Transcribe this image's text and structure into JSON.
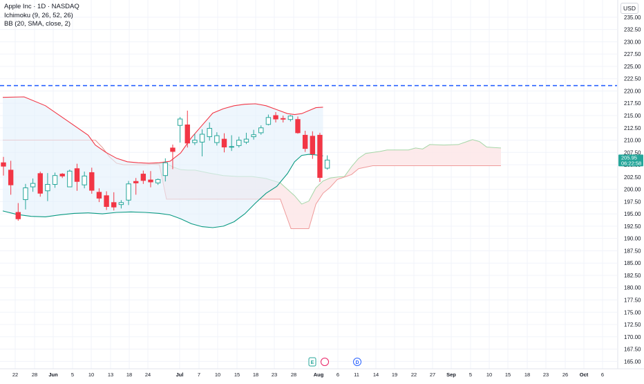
{
  "legend": {
    "title": "Apple Inc · 1D · NASDAQ",
    "ichimoku": "Ichimoku (9, 26, 52, 26)",
    "bb": "BB (20, SMA, close, 2)"
  },
  "currency": "USD",
  "price_label": {
    "value": "205.95",
    "countdown": "06:22:58"
  },
  "event_markers": [
    {
      "label": "E",
      "color": "#26a69a"
    },
    {
      "label": "",
      "color": "#e91e63"
    },
    {
      "label": "D",
      "color": "#2962ff"
    }
  ],
  "colors": {
    "up": "#26a69a",
    "down": "#f23645",
    "bb_upper": "#f23645",
    "bb_lower": "#089981",
    "bb_fill": "#e3f0fb",
    "cloud_bull": "#e8f5e9",
    "cloud_bear": "#fde6e7",
    "hline": "#2962ff"
  },
  "chart_data": {
    "type": "candlestick",
    "symbol": "Apple Inc",
    "interval": "1D",
    "exchange": "NASDAQ",
    "ylim": [
      163.5,
      238.5
    ],
    "y_ticks": [
      165.0,
      167.5,
      170.0,
      172.5,
      175.0,
      177.5,
      180.0,
      182.5,
      185.0,
      187.5,
      190.0,
      192.5,
      195.0,
      197.5,
      200.0,
      202.5,
      205.0,
      207.5,
      210.0,
      212.5,
      215.0,
      217.5,
      220.0,
      222.5,
      225.0,
      227.5,
      230.0,
      232.5,
      235.0
    ],
    "x_ticks": [
      "22",
      "28",
      "Jun",
      "5",
      "10",
      "13",
      "18",
      "24",
      "Jul",
      "7",
      "10",
      "15",
      "18",
      "23",
      "28",
      "Aug",
      "6",
      "11",
      "14",
      "19",
      "22",
      "27",
      "Sep",
      "5",
      "10",
      "15",
      "18",
      "23",
      "26",
      "Oct",
      "6"
    ],
    "horizontal_line": 221.1,
    "last_price": 205.95,
    "candles": [
      {
        "o": 205.4,
        "h": 206.6,
        "l": 202.8,
        "c": 204.7
      },
      {
        "o": 203.9,
        "h": 205.8,
        "l": 198.9,
        "c": 200.9
      },
      {
        "o": 195.3,
        "h": 197.2,
        "l": 193.6,
        "c": 194.0
      },
      {
        "o": 197.9,
        "h": 201.1,
        "l": 195.9,
        "c": 200.3
      },
      {
        "o": 200.5,
        "h": 202.2,
        "l": 199.5,
        "c": 201.2
      },
      {
        "o": 203.2,
        "h": 203.6,
        "l": 198.5,
        "c": 199.2
      },
      {
        "o": 199.7,
        "h": 203.3,
        "l": 197.6,
        "c": 201.0
      },
      {
        "o": 201.0,
        "h": 203.4,
        "l": 200.3,
        "c": 202.8
      },
      {
        "o": 203.1,
        "h": 203.3,
        "l": 202.3,
        "c": 202.7
      },
      {
        "o": 200.5,
        "h": 204.0,
        "l": 200.5,
        "c": 203.7
      },
      {
        "o": 204.2,
        "h": 205.2,
        "l": 199.7,
        "c": 201.6
      },
      {
        "o": 200.9,
        "h": 203.6,
        "l": 200.2,
        "c": 202.7
      },
      {
        "o": 203.4,
        "h": 204.4,
        "l": 199.1,
        "c": 199.8
      },
      {
        "o": 199.4,
        "h": 200.2,
        "l": 197.4,
        "c": 198.2
      },
      {
        "o": 198.7,
        "h": 199.6,
        "l": 195.8,
        "c": 196.5
      },
      {
        "o": 197.3,
        "h": 199.4,
        "l": 195.7,
        "c": 196.4
      },
      {
        "o": 196.9,
        "h": 197.8,
        "l": 196.1,
        "c": 197.3
      },
      {
        "o": 197.8,
        "h": 201.7,
        "l": 196.8,
        "c": 201.1
      },
      {
        "o": 201.6,
        "h": 202.3,
        "l": 198.9,
        "c": 201.3
      },
      {
        "o": 203.1,
        "h": 203.8,
        "l": 201.1,
        "c": 201.8
      },
      {
        "o": 201.9,
        "h": 203.7,
        "l": 200.4,
        "c": 201.5
      },
      {
        "o": 201.3,
        "h": 202.2,
        "l": 200.9,
        "c": 202.0
      },
      {
        "o": 202.8,
        "h": 206.3,
        "l": 201.6,
        "c": 205.4
      },
      {
        "o": 208.4,
        "h": 209.1,
        "l": 204.1,
        "c": 207.7
      },
      {
        "o": 213.0,
        "h": 214.7,
        "l": 209.5,
        "c": 214.3
      },
      {
        "o": 213.1,
        "h": 216.0,
        "l": 208.5,
        "c": 209.4
      },
      {
        "o": 209.5,
        "h": 211.3,
        "l": 209.0,
        "c": 210.0
      },
      {
        "o": 209.6,
        "h": 212.2,
        "l": 206.7,
        "c": 211.2
      },
      {
        "o": 210.7,
        "h": 213.6,
        "l": 209.9,
        "c": 212.4
      },
      {
        "o": 209.5,
        "h": 211.6,
        "l": 208.9,
        "c": 210.9
      },
      {
        "o": 210.2,
        "h": 211.4,
        "l": 207.5,
        "c": 208.6
      },
      {
        "o": 208.6,
        "h": 211.0,
        "l": 207.8,
        "c": 208.7
      },
      {
        "o": 208.9,
        "h": 210.7,
        "l": 208.5,
        "c": 210.0
      },
      {
        "o": 209.6,
        "h": 211.5,
        "l": 209.2,
        "c": 210.2
      },
      {
        "o": 210.7,
        "h": 212.1,
        "l": 210.1,
        "c": 211.1
      },
      {
        "o": 211.5,
        "h": 213.0,
        "l": 211.1,
        "c": 212.5
      },
      {
        "o": 213.2,
        "h": 215.2,
        "l": 213.0,
        "c": 214.6
      },
      {
        "o": 215.0,
        "h": 215.7,
        "l": 213.6,
        "c": 214.3
      },
      {
        "o": 214.4,
        "h": 215.0,
        "l": 213.6,
        "c": 214.3
      },
      {
        "o": 214.2,
        "h": 215.1,
        "l": 213.8,
        "c": 214.9
      },
      {
        "o": 214.2,
        "h": 214.8,
        "l": 211.3,
        "c": 211.5
      },
      {
        "o": 211.0,
        "h": 211.9,
        "l": 207.6,
        "c": 208.3
      },
      {
        "o": 210.8,
        "h": 211.8,
        "l": 206.2,
        "c": 207.2
      },
      {
        "o": 211.0,
        "h": 211.5,
        "l": 201.5,
        "c": 202.4
      },
      {
        "o": 204.3,
        "h": 206.9,
        "l": 204.0,
        "c": 205.95
      }
    ],
    "bb_upper": [
      [
        0,
        218.7
      ],
      [
        6,
        218.8
      ],
      [
        12,
        217.0
      ],
      [
        18,
        214.0
      ],
      [
        24,
        211.0
      ],
      [
        26,
        209.0
      ],
      [
        29,
        207.5
      ],
      [
        32,
        206.3
      ],
      [
        35,
        205.6
      ],
      [
        38,
        205.4
      ],
      [
        41,
        205.3
      ],
      [
        44,
        205.4
      ],
      [
        47,
        205.7
      ],
      [
        50,
        207.4
      ],
      [
        53,
        210.5
      ],
      [
        56,
        213.0
      ],
      [
        59,
        215.5
      ],
      [
        62,
        216.4
      ],
      [
        65,
        217.0
      ],
      [
        68,
        217.3
      ],
      [
        71,
        217.4
      ],
      [
        74,
        217.0
      ],
      [
        77,
        216.2
      ],
      [
        80,
        215.4
      ],
      [
        82,
        215.2
      ],
      [
        84,
        215.4
      ],
      [
        86,
        216.0
      ],
      [
        88,
        216.6
      ],
      [
        90,
        216.7
      ]
    ],
    "bb_lower": [
      [
        0,
        195.6
      ],
      [
        4,
        194.9
      ],
      [
        8,
        194.5
      ],
      [
        12,
        194.4
      ],
      [
        16,
        194.8
      ],
      [
        20,
        195.1
      ],
      [
        24,
        195.2
      ],
      [
        28,
        195.0
      ],
      [
        32,
        195.3
      ],
      [
        36,
        195.4
      ],
      [
        40,
        195.3
      ],
      [
        44,
        195.1
      ],
      [
        47,
        194.8
      ],
      [
        50,
        194.0
      ],
      [
        53,
        193.0
      ],
      [
        56,
        192.4
      ],
      [
        59,
        192.2
      ],
      [
        62,
        192.5
      ],
      [
        65,
        193.4
      ],
      [
        68,
        195.0
      ],
      [
        71,
        197.2
      ],
      [
        74,
        199.2
      ],
      [
        77,
        200.6
      ],
      [
        80,
        203.2
      ],
      [
        82,
        205.6
      ],
      [
        84,
        206.9
      ],
      [
        86,
        207.1
      ],
      [
        88,
        207.0
      ],
      [
        90,
        206.8
      ]
    ],
    "span_a": [
      [
        0,
        210.0
      ],
      [
        10,
        210.0
      ],
      [
        20,
        210.0
      ],
      [
        26,
        210.0
      ],
      [
        28,
        208.5
      ],
      [
        30,
        206.6
      ],
      [
        32,
        205.3
      ],
      [
        34,
        205.0
      ],
      [
        36,
        205.0
      ],
      [
        38,
        205.0
      ],
      [
        40,
        205.0
      ],
      [
        42,
        205.1
      ],
      [
        44,
        205.3
      ],
      [
        46,
        205.2
      ],
      [
        48,
        204.5
      ],
      [
        50,
        204.0
      ],
      [
        52,
        203.9
      ],
      [
        54,
        203.9
      ],
      [
        58,
        203.3
      ],
      [
        62,
        202.8
      ],
      [
        66,
        202.6
      ],
      [
        70,
        202.6
      ],
      [
        74,
        202.2
      ],
      [
        78,
        201.3
      ],
      [
        80,
        200.0
      ],
      [
        82,
        198.7
      ],
      [
        84,
        197.0
      ],
      [
        86,
        197.6
      ],
      [
        88,
        200.3
      ],
      [
        90,
        201.7
      ],
      [
        92,
        202.3
      ],
      [
        94,
        202.5
      ],
      [
        96,
        202.6
      ],
      [
        98,
        204.6
      ],
      [
        100,
        206.3
      ],
      [
        102,
        207.3
      ],
      [
        106,
        207.7
      ],
      [
        108,
        208.0
      ],
      [
        110,
        208.0
      ],
      [
        114,
        208.0
      ],
      [
        116,
        208.4
      ],
      [
        118,
        208.2
      ],
      [
        120,
        209.1
      ],
      [
        124,
        209.0
      ],
      [
        128,
        209.1
      ],
      [
        130,
        209.6
      ],
      [
        132,
        210.1
      ],
      [
        134,
        209.7
      ],
      [
        136,
        208.6
      ],
      [
        138,
        208.5
      ],
      [
        140,
        208.4
      ]
    ],
    "span_b": [
      [
        0,
        210.0
      ],
      [
        20,
        210.0
      ],
      [
        26,
        210.0
      ],
      [
        28,
        208.5
      ],
      [
        30,
        206.6
      ],
      [
        32,
        205.3
      ],
      [
        34,
        205.0
      ],
      [
        36,
        205.0
      ],
      [
        38,
        205.0
      ],
      [
        40,
        205.0
      ],
      [
        42,
        205.1
      ],
      [
        44,
        205.0
      ],
      [
        46,
        198.0
      ],
      [
        50,
        198.0
      ],
      [
        54,
        198.0
      ],
      [
        58,
        198.0
      ],
      [
        62,
        198.0
      ],
      [
        66,
        198.0
      ],
      [
        70,
        198.0
      ],
      [
        74,
        198.0
      ],
      [
        78,
        198.0
      ],
      [
        80,
        194.0
      ],
      [
        81,
        192.0
      ],
      [
        84,
        192.0
      ],
      [
        86,
        192.0
      ],
      [
        88,
        197.0
      ],
      [
        90,
        199.2
      ],
      [
        92,
        200.4
      ],
      [
        94,
        202.0
      ],
      [
        96,
        202.5
      ],
      [
        98,
        203.0
      ],
      [
        100,
        204.2
      ],
      [
        104,
        204.8
      ],
      [
        106,
        204.8
      ],
      [
        110,
        204.8
      ],
      [
        120,
        204.8
      ],
      [
        130,
        204.8
      ],
      [
        140,
        204.8
      ]
    ]
  }
}
